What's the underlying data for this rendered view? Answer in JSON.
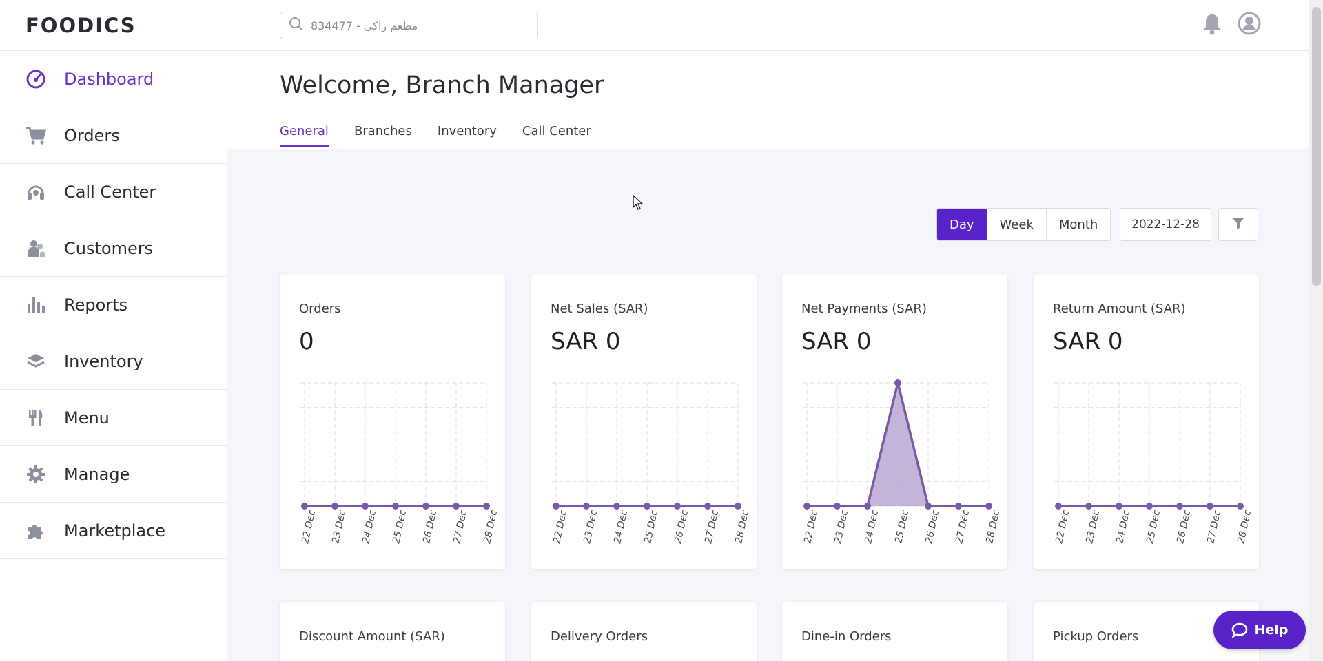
{
  "app": {
    "logo": "FOODICS"
  },
  "sidebar": {
    "items": [
      {
        "label": "Dashboard",
        "icon": "dashboard-icon",
        "active": true
      },
      {
        "label": "Orders",
        "icon": "cart-icon"
      },
      {
        "label": "Call Center",
        "icon": "headset-icon"
      },
      {
        "label": "Customers",
        "icon": "customers-icon"
      },
      {
        "label": "Reports",
        "icon": "reports-icon"
      },
      {
        "label": "Inventory",
        "icon": "layers-icon"
      },
      {
        "label": "Menu",
        "icon": "utensils-icon"
      },
      {
        "label": "Manage",
        "icon": "gear-icon"
      },
      {
        "label": "Marketplace",
        "icon": "puzzle-icon"
      }
    ]
  },
  "search": {
    "placeholder": "مطعم زاكي - 834477"
  },
  "header": {
    "welcome": "Welcome, Branch Manager",
    "tabs": [
      "General",
      "Branches",
      "Inventory",
      "Call Center"
    ],
    "active_tab": "General"
  },
  "controls": {
    "periods": [
      "Day",
      "Week",
      "Month"
    ],
    "active_period": "Day",
    "date": "2022-12-28"
  },
  "cards_row1": [
    {
      "title": "Orders",
      "value": "0"
    },
    {
      "title": "Net Sales (SAR)",
      "value": "SAR 0"
    },
    {
      "title": "Net Payments (SAR)",
      "value": "SAR 0"
    },
    {
      "title": "Return Amount (SAR)",
      "value": "SAR 0"
    }
  ],
  "cards_row2": [
    {
      "title": "Discount Amount (SAR)"
    },
    {
      "title": "Delivery Orders"
    },
    {
      "title": "Dine-in Orders"
    },
    {
      "title": "Pickup Orders"
    }
  ],
  "help": {
    "label": "Help"
  },
  "colors": {
    "accent": "#5a22c9",
    "line": "#7a5aa6",
    "fill": "#b9a8d3"
  },
  "chart_data": [
    {
      "type": "line",
      "title": "Orders",
      "x": [
        "22 Dec",
        "23 Dec",
        "24 Dec",
        "25 Dec",
        "26 Dec",
        "27 Dec",
        "28 Dec"
      ],
      "values": [
        0,
        0,
        0,
        0,
        0,
        0,
        0
      ],
      "ylim": [
        0,
        1
      ],
      "grid": true
    },
    {
      "type": "line",
      "title": "Net Sales (SAR)",
      "x": [
        "22 Dec",
        "23 Dec",
        "24 Dec",
        "25 Dec",
        "26 Dec",
        "27 Dec",
        "28 Dec"
      ],
      "values": [
        0,
        0,
        0,
        0,
        0,
        0,
        0
      ],
      "ylim": [
        0,
        1
      ],
      "grid": true
    },
    {
      "type": "area",
      "title": "Net Payments (SAR)",
      "x": [
        "22 Dec",
        "23 Dec",
        "24 Dec",
        "25 Dec",
        "26 Dec",
        "27 Dec",
        "28 Dec"
      ],
      "values": [
        0,
        0,
        0,
        1,
        0,
        0,
        0
      ],
      "ylim": [
        0,
        1
      ],
      "grid": true
    },
    {
      "type": "line",
      "title": "Return Amount (SAR)",
      "x": [
        "22 Dec",
        "23 Dec",
        "24 Dec",
        "25 Dec",
        "26 Dec",
        "27 Dec",
        "28 Dec"
      ],
      "values": [
        0,
        0,
        0,
        0,
        0,
        0,
        0
      ],
      "ylim": [
        0,
        1
      ],
      "grid": true
    }
  ]
}
